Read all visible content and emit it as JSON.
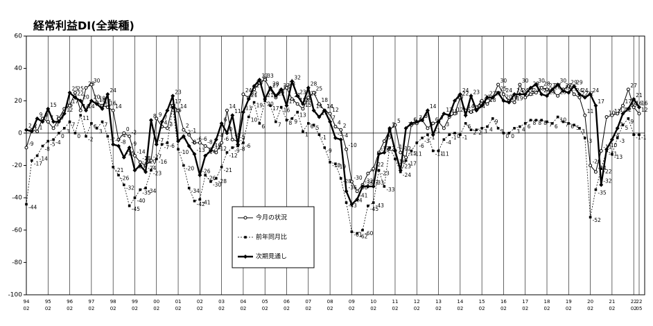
{
  "chart_data": {
    "type": "line",
    "title": "経常利益DI(全業種)",
    "categories": [
      [
        "94",
        "02"
      ],
      null,
      null,
      null,
      [
        "95",
        "02"
      ],
      null,
      null,
      null,
      [
        "96",
        "02"
      ],
      null,
      null,
      null,
      [
        "97",
        "02"
      ],
      null,
      null,
      null,
      [
        "98",
        "02"
      ],
      null,
      null,
      null,
      [
        "99",
        "02"
      ],
      null,
      null,
      null,
      [
        "00",
        "02"
      ],
      null,
      null,
      null,
      [
        "01",
        "02"
      ],
      null,
      null,
      null,
      [
        "02",
        "02"
      ],
      null,
      null,
      null,
      [
        "03",
        "02"
      ],
      null,
      null,
      null,
      [
        "04",
        "02"
      ],
      null,
      null,
      null,
      [
        "05",
        "02"
      ],
      null,
      null,
      null,
      [
        "06",
        "02"
      ],
      null,
      null,
      null,
      [
        "07",
        "02"
      ],
      null,
      null,
      null,
      [
        "08",
        "02"
      ],
      null,
      null,
      null,
      [
        "09",
        "02"
      ],
      null,
      null,
      null,
      [
        "10",
        "02"
      ],
      null,
      null,
      null,
      [
        "11",
        "02"
      ],
      null,
      null,
      null,
      [
        "12",
        "02"
      ],
      null,
      null,
      null,
      [
        "13",
        "02"
      ],
      null,
      null,
      null,
      [
        "14",
        "02"
      ],
      null,
      null,
      null,
      [
        "15",
        "02"
      ],
      null,
      null,
      null,
      [
        "16",
        "02"
      ],
      null,
      null,
      null,
      [
        "17",
        "02"
      ],
      null,
      null,
      null,
      [
        "18",
        "02"
      ],
      null,
      null,
      null,
      [
        "19",
        "02"
      ],
      null,
      null,
      null,
      [
        "20",
        "02"
      ],
      null,
      null,
      null,
      [
        "21",
        "02"
      ],
      null,
      null,
      null,
      [
        "22",
        "02"
      ],
      [
        "22",
        "05"
      ]
    ],
    "series": [
      {
        "name": "今月の状況",
        "color": "#000000",
        "marker": "open-circle",
        "style": "solid",
        "values": [
          -9,
          2,
          1,
          9,
          7,
          3,
          9,
          15,
          17,
          25,
          14,
          28,
          30,
          19,
          17,
          16,
          14,
          -4,
          0,
          -2,
          -14,
          -18,
          -20,
          -17,
          9,
          4,
          3,
          17,
          14,
          2,
          -1,
          -6,
          -6,
          -8,
          -10,
          -12,
          -6,
          14,
          -4,
          -5,
          24,
          22,
          27,
          31,
          33,
          27,
          22,
          26,
          28,
          21,
          18,
          15,
          22,
          25,
          18,
          14,
          12,
          4,
          2,
          -10,
          -30,
          -36,
          -32,
          -25,
          -22,
          -12,
          -5,
          2,
          5,
          -12,
          -15,
          5,
          6,
          8,
          3,
          6,
          7,
          3,
          10,
          12,
          22,
          14,
          13,
          16,
          20,
          18,
          22,
          30,
          24,
          20,
          19,
          30,
          22,
          24,
          25,
          28,
          27,
          26,
          23,
          27,
          29,
          24,
          22,
          11,
          -20,
          -24,
          -11,
          10,
          11,
          12,
          17,
          27,
          16,
          12
        ]
      },
      {
        "name": "前年同月比",
        "color": "#000000",
        "marker": "square",
        "style": "dashed",
        "values": [
          -44,
          -17,
          -14,
          -8,
          -5,
          -4,
          0,
          3,
          7,
          0,
          11,
          -2,
          6,
          3,
          7,
          -2,
          -21,
          -26,
          -32,
          -45,
          -40,
          -35,
          -34,
          -23,
          -16,
          -7,
          -6,
          16,
          -10,
          -20,
          -34,
          -42,
          -41,
          -26,
          -30,
          -28,
          -21,
          -12,
          -9,
          -8,
          -6,
          10,
          19,
          6,
          20,
          17,
          7,
          16,
          8,
          9,
          13,
          1,
          6,
          5,
          -1,
          -9,
          -18,
          -19,
          -28,
          -43,
          -61,
          -62,
          -60,
          -45,
          -43,
          -23,
          -33,
          -9,
          -16,
          -24,
          -17,
          -11,
          -6,
          -3,
          -1,
          -11,
          -11,
          -4,
          -1,
          0,
          -1,
          6,
          2,
          2,
          3,
          4,
          9,
          3,
          0,
          0,
          3,
          4,
          6,
          8,
          8,
          8,
          7,
          6,
          10,
          7,
          6,
          5,
          3,
          -3,
          -52,
          -35,
          -22,
          -11,
          -13,
          -3,
          5,
          9,
          -1,
          -1
        ]
      },
      {
        "name": "次期見通し",
        "color": "#000000",
        "marker": "diamond",
        "style": "bold",
        "values": [
          2,
          1,
          9,
          7,
          15,
          7,
          7,
          12,
          25,
          22,
          20,
          14,
          20,
          18,
          15,
          24,
          -7,
          -8,
          -15,
          -9,
          -23,
          -20,
          -24,
          8,
          -7,
          7,
          14,
          23,
          -5,
          -2,
          -8,
          -13,
          -26,
          -14,
          -11,
          -4,
          6,
          0,
          11,
          -7,
          13,
          21,
          29,
          33,
          21,
          28,
          23,
          27,
          17,
          32,
          23,
          18,
          28,
          14,
          10,
          14,
          7,
          -3,
          -4,
          -36,
          -44,
          -41,
          -33,
          -33,
          -33,
          -13,
          -12,
          3,
          -11,
          -23,
          3,
          6,
          7,
          8,
          14,
          -1,
          7,
          12,
          11,
          20,
          24,
          11,
          23,
          14,
          17,
          22,
          22,
          25,
          20,
          19,
          24,
          24,
          24,
          28,
          30,
          24,
          23,
          27,
          30,
          26,
          25,
          29,
          24,
          22,
          24,
          17,
          -32,
          -10,
          -4,
          3,
          12,
          15,
          21,
          16
        ]
      }
    ],
    "ylim": [
      -100,
      60
    ],
    "yticks": [
      -100,
      -80,
      -60,
      -40,
      -20,
      0,
      20,
      40,
      60
    ]
  }
}
